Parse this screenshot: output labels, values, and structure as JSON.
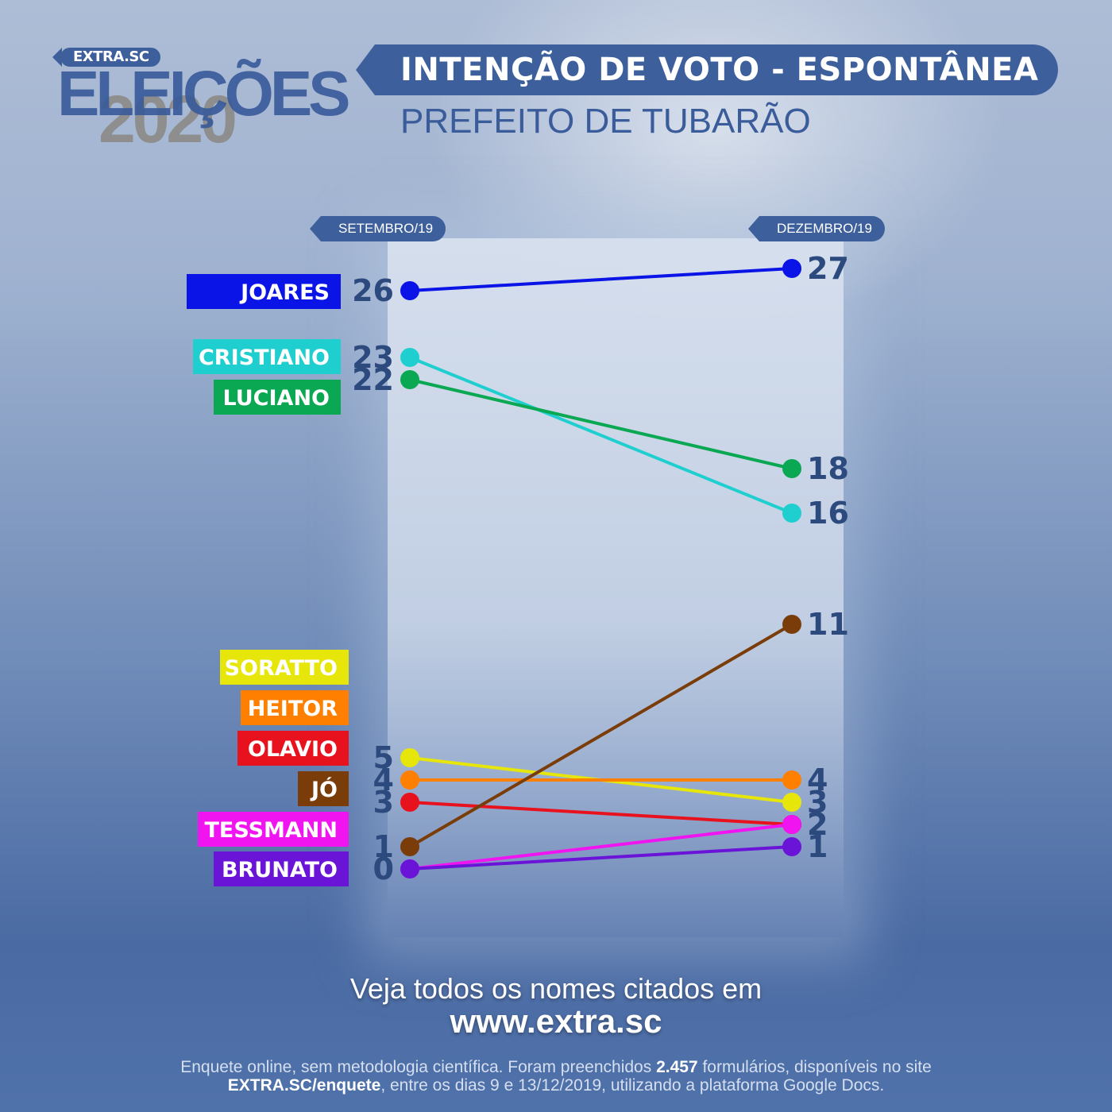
{
  "logo": {
    "badge": "EXTRA.SC",
    "word": "ELEIÇÕES",
    "year": "2020"
  },
  "header": {
    "title": "INTENÇÃO DE VOTO - ESPONTÂNEA",
    "subtitle": "PREFEITO DE TUBARÃO"
  },
  "chart_data": {
    "type": "line",
    "title": "INTENÇÃO DE VOTO - ESPONTÂNEA",
    "subtitle": "PREFEITO DE TUBARÃO",
    "categories": [
      "SETEMBRO/19",
      "DEZEMBRO/19"
    ],
    "ylim": [
      0,
      27
    ],
    "grid": false,
    "series": [
      {
        "name": "JOARES",
        "values": [
          26,
          27
        ],
        "color": "#0a14e6"
      },
      {
        "name": "CRISTIANO",
        "values": [
          23,
          16
        ],
        "color": "#1fcfcf"
      },
      {
        "name": "LUCIANO",
        "values": [
          22,
          18
        ],
        "color": "#0aa853"
      },
      {
        "name": "SORATTO",
        "values": [
          5,
          3
        ],
        "color": "#e6e60a"
      },
      {
        "name": "HEITOR",
        "values": [
          4,
          4
        ],
        "color": "#ff7f00"
      },
      {
        "name": "OLAVIO",
        "values": [
          3,
          2
        ],
        "color": "#e8121e"
      },
      {
        "name": "JÓ",
        "values": [
          1,
          11
        ],
        "color": "#7a3d0a"
      },
      {
        "name": "TESSMANN",
        "values": [
          0,
          2
        ],
        "color": "#f014f0"
      },
      {
        "name": "BRUNATO",
        "values": [
          0,
          1
        ],
        "color": "#6a14d8"
      }
    ]
  },
  "footer": {
    "cta_line1": "Veja todos os nomes citados em",
    "cta_line2": "www.extra.sc",
    "note1_a": "Enquete online, sem metodologia científica. Foram preenchidos ",
    "note1_b": "2.457",
    "note1_c": " formulários, disponíveis no site",
    "note2_a": "EXTRA.SC/enquete",
    "note2_b": ", entre os dias 9 e 13/12/2019, utilizando a plataforma Google Docs."
  }
}
